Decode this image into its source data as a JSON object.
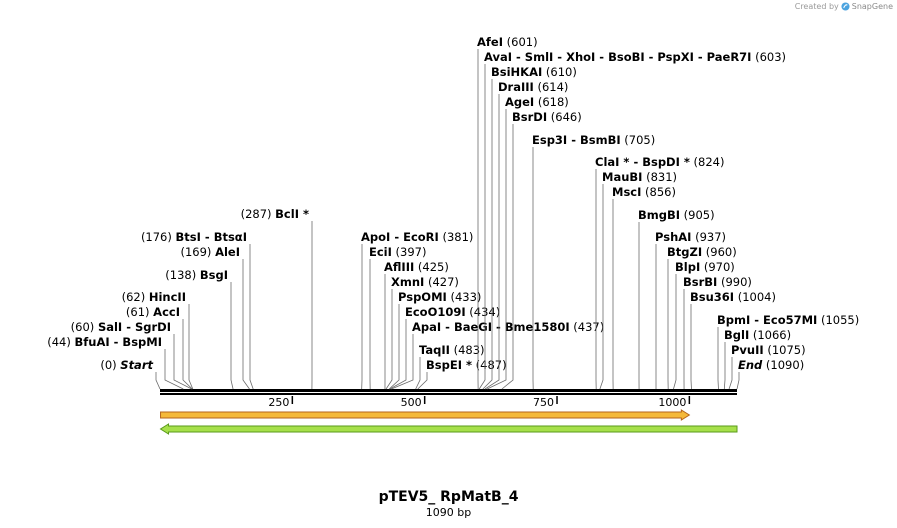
{
  "credit": {
    "prefix": "Created by",
    "brand": "SnapGene",
    "icon": "snapgene-logo-icon"
  },
  "title": "pTEV5_ RpMatB_4",
  "subtitle": "1090 bp",
  "sequence_length": 1090,
  "ticks": [
    250,
    500,
    750,
    1000
  ],
  "features": [
    {
      "direction": "forward",
      "start": 1,
      "end": 1000,
      "fill": "#f5b93a",
      "stroke": "#b5651d"
    },
    {
      "direction": "reverse",
      "start": 1,
      "end": 1090,
      "fill": "#a6e04a",
      "stroke": "#5a9a1a"
    }
  ],
  "sites": [
    {
      "pos": 0,
      "label": "Start",
      "num": "(0)",
      "side": "left",
      "italic": true
    },
    {
      "pos": 44,
      "label": "BfuAI - BspMI",
      "num": "(44)",
      "side": "left"
    },
    {
      "pos": 60,
      "label": "SalI - SgrDI",
      "num": "(60)",
      "side": "left"
    },
    {
      "pos": 61,
      "label": "AccI",
      "num": "(61)",
      "side": "left"
    },
    {
      "pos": 62,
      "label": "HincII",
      "num": "(62)",
      "side": "left"
    },
    {
      "pos": 138,
      "label": "BsgI",
      "num": "(138)",
      "side": "left"
    },
    {
      "pos": 169,
      "label": "AleI",
      "num": "(169)",
      "side": "left"
    },
    {
      "pos": 176,
      "label": "BtsI - BtsαI",
      "num": "(176)",
      "side": "left"
    },
    {
      "pos": 287,
      "label": "BclI *",
      "num": "(287)",
      "side": "left"
    },
    {
      "pos": 381,
      "label": "ApoI - EcoRI",
      "num": "(381)",
      "side": "right"
    },
    {
      "pos": 397,
      "label": "EciI",
      "num": "(397)",
      "side": "right"
    },
    {
      "pos": 425,
      "label": "AflIII",
      "num": "(425)",
      "side": "right"
    },
    {
      "pos": 427,
      "label": "XmnI",
      "num": "(427)",
      "side": "right"
    },
    {
      "pos": 433,
      "label": "PspOMI",
      "num": "(433)",
      "side": "right"
    },
    {
      "pos": 434,
      "label": "EcoO109I",
      "num": "(434)",
      "side": "right"
    },
    {
      "pos": 437,
      "label": "ApaI - BaeGI - Bme1580I",
      "num": "(437)",
      "side": "right"
    },
    {
      "pos": 483,
      "label": "TaqII",
      "num": "(483)",
      "side": "right"
    },
    {
      "pos": 487,
      "label": "BspEI *",
      "num": "(487)",
      "side": "right"
    },
    {
      "pos": 601,
      "label": "AfeI",
      "num": "(601)",
      "side": "right"
    },
    {
      "pos": 603,
      "label": "AvaI - SmlI - XhoI - BsoBI - PspXI - PaeR7I",
      "num": "(603)",
      "side": "right"
    },
    {
      "pos": 610,
      "label": "BsiHKAI",
      "num": "(610)",
      "side": "right"
    },
    {
      "pos": 614,
      "label": "DraIII",
      "num": "(614)",
      "side": "right"
    },
    {
      "pos": 618,
      "label": "AgeI",
      "num": "(618)",
      "side": "right"
    },
    {
      "pos": 646,
      "label": "BsrDI",
      "num": "(646)",
      "side": "right"
    },
    {
      "pos": 705,
      "label": "Esp3I - BsmBI",
      "num": "(705)",
      "side": "right"
    },
    {
      "pos": 824,
      "label": "ClaI * - BspDI *",
      "num": "(824)",
      "side": "right"
    },
    {
      "pos": 831,
      "label": "MauBI",
      "num": "(831)",
      "side": "right"
    },
    {
      "pos": 856,
      "label": "MscI",
      "num": "(856)",
      "side": "right"
    },
    {
      "pos": 905,
      "label": "BmgBI",
      "num": "(905)",
      "side": "right"
    },
    {
      "pos": 937,
      "label": "PshAI",
      "num": "(937)",
      "side": "right"
    },
    {
      "pos": 960,
      "label": "BtgZI",
      "num": "(960)",
      "side": "right"
    },
    {
      "pos": 970,
      "label": "BlpI",
      "num": "(970)",
      "side": "right"
    },
    {
      "pos": 990,
      "label": "BsrBI",
      "num": "(990)",
      "side": "right"
    },
    {
      "pos": 1004,
      "label": "Bsu36I",
      "num": "(1004)",
      "side": "right"
    },
    {
      "pos": 1055,
      "label": "BpmI - Eco57MI",
      "num": "(1055)",
      "side": "right"
    },
    {
      "pos": 1066,
      "label": "BglI",
      "num": "(1066)",
      "side": "right"
    },
    {
      "pos": 1075,
      "label": "PvuII",
      "num": "(1075)",
      "side": "right"
    },
    {
      "pos": 1090,
      "label": "End",
      "num": "(1090)",
      "side": "right",
      "italic": true
    }
  ]
}
